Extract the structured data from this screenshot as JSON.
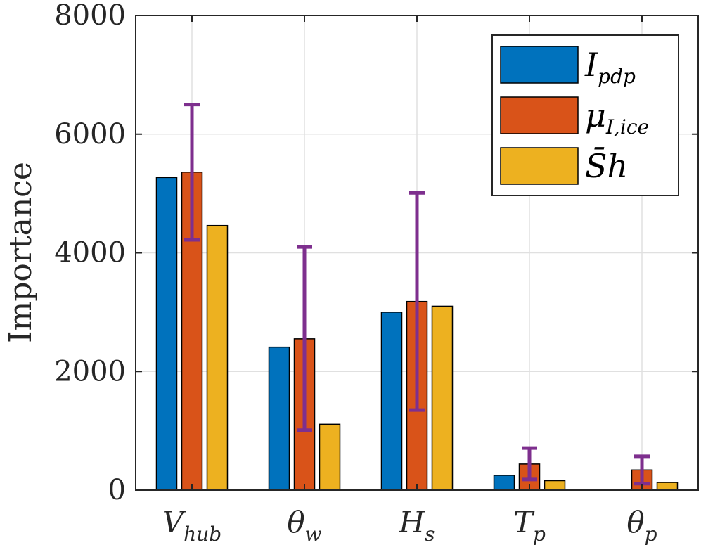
{
  "chart_data": {
    "type": "bar",
    "ylabel": "Importance",
    "ylim": [
      0,
      8000
    ],
    "yticks": [
      0,
      2000,
      4000,
      6000,
      8000
    ],
    "grid": true,
    "legend_position": "top-right",
    "categories": [
      {
        "base": "V",
        "sub": "hub"
      },
      {
        "base": "θ",
        "sub": "w"
      },
      {
        "base": "H",
        "sub": "s"
      },
      {
        "base": "T",
        "sub": "p"
      },
      {
        "base": "θ",
        "sub": "p"
      }
    ],
    "series": [
      {
        "name": "I_pdp",
        "legend_base": "I",
        "legend_sub": "pdp",
        "color": "#0072BD",
        "values": [
          5270,
          2410,
          3000,
          250,
          10
        ]
      },
      {
        "name": "μ_I,ice",
        "legend_base": "μ",
        "legend_sub": "I,ice",
        "color": "#D95319",
        "values": [
          5360,
          2550,
          3180,
          440,
          340
        ]
      },
      {
        "name": "S̄h",
        "legend_base": "S̄h",
        "legend_sub": "",
        "color": "#EDB120",
        "values": [
          4460,
          1110,
          3100,
          160,
          130
        ]
      }
    ],
    "error_bars": {
      "series": "μ_I,ice",
      "color": "#7E2F8E",
      "lower": [
        4220,
        1010,
        1350,
        180,
        110
      ],
      "upper": [
        6500,
        4100,
        5010,
        710,
        570
      ]
    }
  }
}
